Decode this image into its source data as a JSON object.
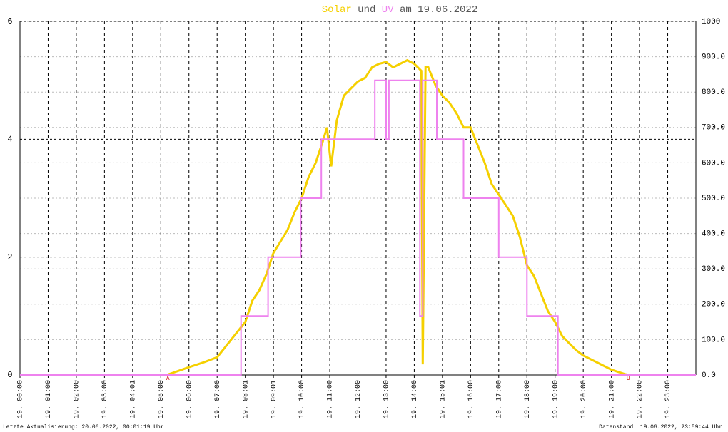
{
  "chart_data": {
    "type": "line",
    "title_words": [
      "und",
      "am 19.06.2022"
    ],
    "xlim": [
      0,
      24
    ],
    "xticks": [
      {
        "value": 0,
        "label": "19. 00:00"
      },
      {
        "value": 1,
        "label": "19. 01:00"
      },
      {
        "value": 2,
        "label": "19. 02:00"
      },
      {
        "value": 3,
        "label": "19. 03:00"
      },
      {
        "value": 4,
        "label": "19. 04:01"
      },
      {
        "value": 5,
        "label": "19. 05:00"
      },
      {
        "value": 6,
        "label": "19. 06:00"
      },
      {
        "value": 7,
        "label": "19. 07:00"
      },
      {
        "value": 8,
        "label": "19. 08:01"
      },
      {
        "value": 9,
        "label": "19. 09:01"
      },
      {
        "value": 10,
        "label": "19. 10:00"
      },
      {
        "value": 11,
        "label": "19. 11:00"
      },
      {
        "value": 12,
        "label": "19. 12:00"
      },
      {
        "value": 13,
        "label": "19. 13:00"
      },
      {
        "value": 14,
        "label": "19. 14:00"
      },
      {
        "value": 15,
        "label": "19. 15:01"
      },
      {
        "value": 16,
        "label": "19. 16:00"
      },
      {
        "value": 17,
        "label": "19. 17:00"
      },
      {
        "value": 18,
        "label": "19. 18:00"
      },
      {
        "value": 19,
        "label": "19. 19:00"
      },
      {
        "value": 20,
        "label": "19. 20:00"
      },
      {
        "value": 21,
        "label": "19. 21:00"
      },
      {
        "value": 22,
        "label": "19. 22:00"
      },
      {
        "value": 23,
        "label": "19. 23:00"
      }
    ],
    "ylim": [
      0,
      6
    ],
    "yticks": [
      0,
      2,
      4,
      6
    ],
    "y2lim": [
      0,
      1000
    ],
    "y2ticks": [
      {
        "value": 0,
        "label": "0.0"
      },
      {
        "value": 100,
        "label": "100.0"
      },
      {
        "value": 200,
        "label": "200.0"
      },
      {
        "value": 300,
        "label": "300.0"
      },
      {
        "value": 400,
        "label": "400.0"
      },
      {
        "value": 500,
        "label": "500.0"
      },
      {
        "value": 600,
        "label": "600.0"
      },
      {
        "value": 700,
        "label": "700.0"
      },
      {
        "value": 800,
        "label": "800.0"
      },
      {
        "value": 900,
        "label": "900.0"
      },
      1000
    ],
    "grid": true,
    "series": [
      {
        "name": "Solar",
        "color": "#f5d000",
        "axis": "y2",
        "x": [
          0,
          5.2,
          5.5,
          6.0,
          6.5,
          7.0,
          7.5,
          8.0,
          8.25,
          8.5,
          8.75,
          9.0,
          9.5,
          9.75,
          10.0,
          10.25,
          10.5,
          10.75,
          10.9,
          11.05,
          11.25,
          11.5,
          11.75,
          12.0,
          12.25,
          12.5,
          12.75,
          13.0,
          13.25,
          13.5,
          13.75,
          14.0,
          14.25,
          14.3,
          14.4,
          14.5,
          14.75,
          15.0,
          15.25,
          15.5,
          15.75,
          16.0,
          16.25,
          16.5,
          16.75,
          17.0,
          17.25,
          17.5,
          17.75,
          18.0,
          18.25,
          18.5,
          18.75,
          19.0,
          19.25,
          19.5,
          19.75,
          20.0,
          20.5,
          21.0,
          21.5,
          21.6,
          24
        ],
        "values": [
          0,
          0,
          8,
          22,
          35,
          50,
          100,
          150,
          210,
          240,
          285,
          345,
          410,
          460,
          500,
          560,
          600,
          660,
          700,
          590,
          720,
          790,
          810,
          830,
          840,
          870,
          880,
          885,
          870,
          880,
          890,
          880,
          860,
          30,
          870,
          870,
          820,
          790,
          770,
          740,
          700,
          700,
          650,
          600,
          540,
          510,
          480,
          450,
          390,
          310,
          280,
          230,
          180,
          150,
          110,
          90,
          70,
          55,
          35,
          15,
          2,
          0,
          0
        ]
      },
      {
        "name": "UV",
        "color": "#ee82ee",
        "axis": "y",
        "x": [
          0,
          7.85,
          7.85,
          8.81,
          8.81,
          9.97,
          9.97,
          10.7,
          10.7,
          12.6,
          12.6,
          13.0,
          13.0,
          13.1,
          13.1,
          14.2,
          14.2,
          14.3,
          14.3,
          14.8,
          14.8,
          15.75,
          15.75,
          17.0,
          17.0,
          18.0,
          18.0,
          19.1,
          19.1,
          24
        ],
        "values": [
          0,
          0,
          1,
          1,
          2,
          2,
          3,
          3,
          4,
          4,
          5,
          5,
          4,
          4,
          5,
          5,
          1,
          1,
          5,
          5,
          4,
          4,
          3,
          3,
          2,
          2,
          1,
          1,
          0,
          0
        ]
      }
    ],
    "annotations": [
      {
        "text": "A",
        "x": 5.25
      },
      {
        "text": "U",
        "x": 21.6
      }
    ],
    "footer_left": "Letzte Aktualisierung: 20.06.2022, 00:01:19 Uhr",
    "footer_right": "Datenstand: 19.06.2022, 23:59:44 Uhr"
  }
}
